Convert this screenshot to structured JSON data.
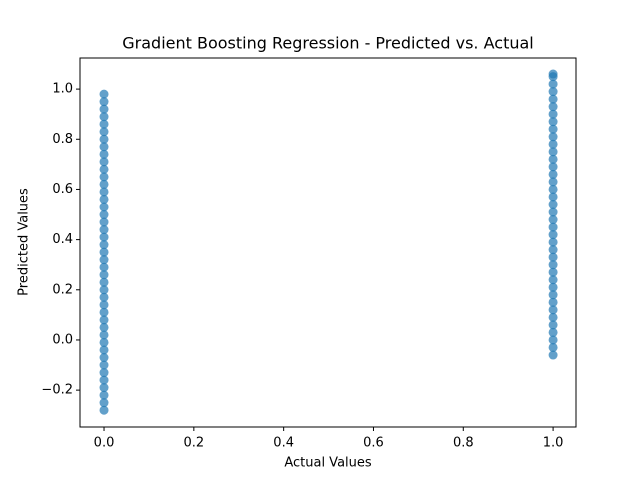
{
  "chart_data": {
    "type": "scatter",
    "title": "Gradient Boosting Regression - Predicted vs. Actual",
    "x_label": "Actual Values",
    "y_label": "Predicted Values",
    "color": "#1f77b4",
    "grid": false,
    "x": [
      0,
      0,
      0,
      0,
      0,
      0,
      0,
      0,
      0,
      0,
      0,
      0,
      0,
      0,
      0,
      0,
      0,
      0,
      0,
      0,
      0,
      0,
      0,
      0,
      0,
      0,
      0,
      0,
      0,
      0,
      0,
      0,
      0,
      0,
      0,
      0,
      0,
      0,
      0,
      0,
      0,
      0,
      0,
      1,
      1,
      1,
      1,
      1,
      1,
      1,
      1,
      1,
      1,
      1,
      1,
      1,
      1,
      1,
      1,
      1,
      1,
      1,
      1,
      1,
      1,
      1,
      1,
      1,
      1,
      1,
      1,
      1,
      1,
      1,
      1,
      1,
      1,
      1,
      1,
      1,
      1,
      1
    ],
    "values": [
      -0.28,
      -0.25,
      -0.22,
      -0.19,
      -0.16,
      -0.13,
      -0.1,
      -0.07,
      -0.04,
      -0.01,
      0.02,
      0.05,
      0.08,
      0.11,
      0.14,
      0.17,
      0.2,
      0.23,
      0.26,
      0.29,
      0.32,
      0.35,
      0.38,
      0.41,
      0.44,
      0.47,
      0.5,
      0.53,
      0.56,
      0.59,
      0.62,
      0.65,
      0.68,
      0.71,
      0.74,
      0.77,
      0.8,
      0.83,
      0.86,
      0.89,
      0.92,
      0.95,
      0.98,
      -0.06,
      -0.03,
      0,
      0.03,
      0.06,
      0.09,
      0.12,
      0.15,
      0.18,
      0.21,
      0.24,
      0.27,
      0.3,
      0.33,
      0.36,
      0.39,
      0.42,
      0.45,
      0.48,
      0.51,
      0.54,
      0.57,
      0.6,
      0.63,
      0.66,
      0.69,
      0.72,
      0.75,
      0.78,
      0.81,
      0.84,
      0.87,
      0.9,
      0.93,
      0.96,
      0.99,
      1.02,
      1.05,
      1.06
    ],
    "xlim": [
      -0.0535,
      1.051
    ],
    "ylim": [
      -0.347,
      1.124
    ],
    "xticks": [
      {
        "value": 0,
        "label": "0.0"
      },
      0.2,
      0.4,
      0.6,
      0.8,
      {
        "value": 1,
        "label": "1.0"
      }
    ],
    "yticks": [
      {
        "value": -0.2,
        "label": "−0.2"
      },
      {
        "value": 0,
        "label": "0.0"
      },
      0.2,
      0.4,
      0.6,
      0.8,
      {
        "value": 1,
        "label": "1.0"
      }
    ]
  }
}
